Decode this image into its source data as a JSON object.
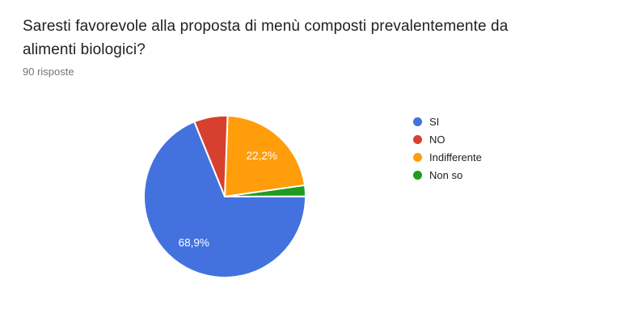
{
  "question": {
    "title_full": "Saresti favorevole alla proposta di menù composti prevalentemente da alimenti biologici?",
    "title_lines": [
      "Saresti favorevole alla proposta di menù composti prevalentemente da",
      "alimenti biologici?"
    ],
    "responses_count_label": "90 risposte"
  },
  "chart_data": {
    "type": "pie",
    "title": "Saresti favorevole alla proposta di menù composti prevalentemente da alimenti biologici?",
    "subtitle": "90 risposte",
    "total_responses": 90,
    "legend_position": "right",
    "start_angle_deg": 2,
    "draw_order": [
      2,
      3,
      0,
      1
    ],
    "label_radius_ratio": 0.685,
    "slices": [
      {
        "label": "SI",
        "pct": 68.9,
        "display_pct": "68,9%",
        "color": "#4372df"
      },
      {
        "label": "NO",
        "pct": 6.7,
        "display_pct": "",
        "color": "#d7402e"
      },
      {
        "label": "Indifferente",
        "pct": 22.2,
        "display_pct": "22,2%",
        "color": "#ff9d0b"
      },
      {
        "label": "Non so",
        "pct": 2.2,
        "display_pct": "",
        "color": "#1e9c20"
      }
    ]
  },
  "colors": {
    "background": "#ffffff",
    "title_text": "#212121",
    "subtitle_text": "#757575",
    "legend_text": "#212121",
    "slice_label_text": "#ffffff"
  }
}
